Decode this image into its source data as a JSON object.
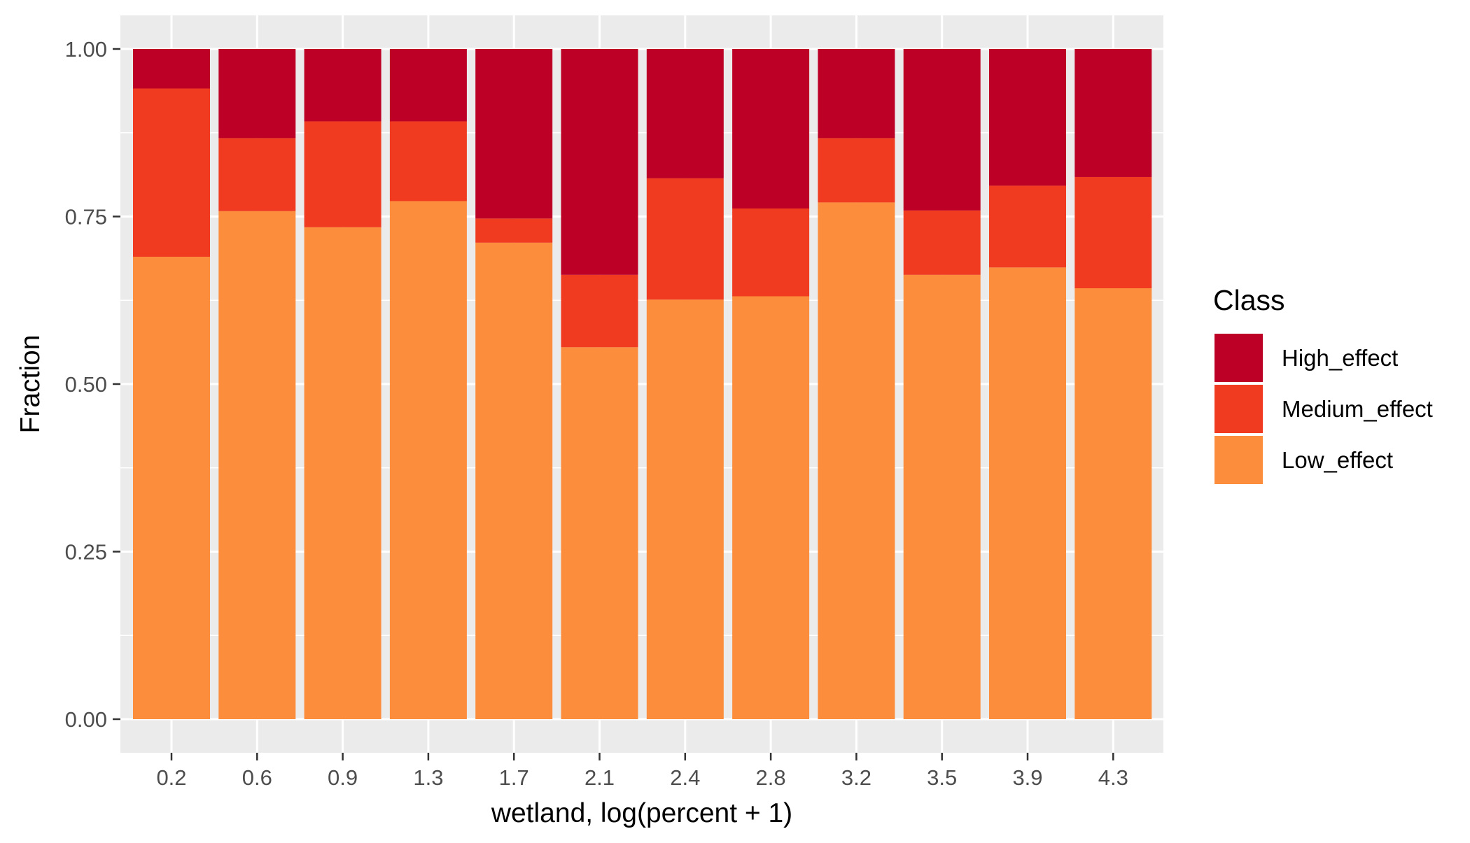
{
  "chart_data": {
    "type": "bar",
    "stacked": true,
    "xlabel": "wetland, log(percent + 1)",
    "ylabel": "Fraction",
    "ylim": [
      0,
      1
    ],
    "yticks": [
      "0.00",
      "0.25",
      "0.50",
      "0.75",
      "1.00"
    ],
    "grid": true,
    "legend": {
      "title": "Class",
      "placement": "right"
    },
    "categories": [
      "0.2",
      "0.6",
      "0.9",
      "1.3",
      "1.7",
      "2.1",
      "2.4",
      "2.8",
      "3.2",
      "3.5",
      "3.9",
      "4.3"
    ],
    "series": [
      {
        "name": "Low_effect",
        "color": "#FC8D3C",
        "values": [
          0.69,
          0.758,
          0.734,
          0.773,
          0.711,
          0.555,
          0.626,
          0.631,
          0.771,
          0.663,
          0.674,
          0.643
        ]
      },
      {
        "name": "Medium_effect",
        "color": "#F03B20",
        "values": [
          0.251,
          0.109,
          0.158,
          0.119,
          0.036,
          0.108,
          0.181,
          0.131,
          0.096,
          0.096,
          0.122,
          0.166
        ]
      },
      {
        "name": "High_effect",
        "color": "#BD0026",
        "values": [
          0.059,
          0.133,
          0.108,
          0.108,
          0.253,
          0.337,
          0.193,
          0.238,
          0.133,
          0.241,
          0.204,
          0.191
        ]
      }
    ],
    "legend_order": [
      "High_effect",
      "Medium_effect",
      "Low_effect"
    ]
  }
}
